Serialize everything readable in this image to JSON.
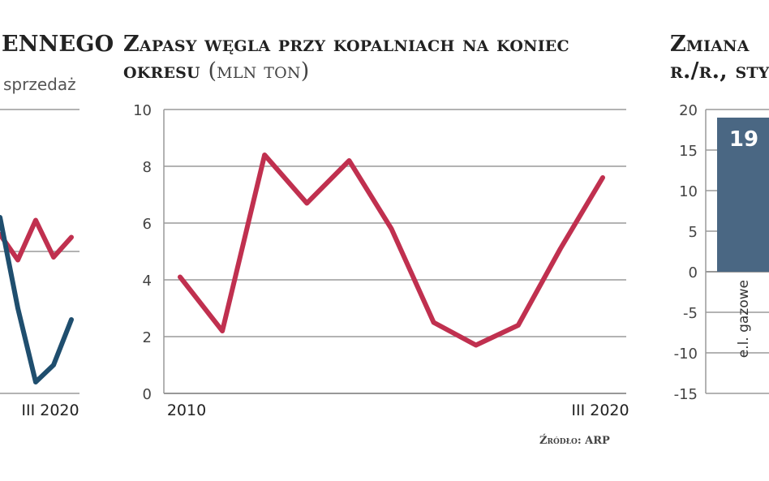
{
  "left_panel": {
    "title_fragment": "ENNEGO",
    "legend_fragment": "sprzedaż",
    "x_end_label": "III 2020",
    "colors": {
      "red": "#c0304f",
      "blue": "#1f4e6e"
    },
    "chart_data": {
      "type": "line",
      "series": [
        {
          "name": "sprzedaż",
          "values": [
            5.6,
            4.7,
            6.1,
            4.8,
            5.5
          ],
          "color": "#c0304f"
        },
        {
          "values": [
            6.2,
            3.0,
            0.4,
            1.0,
            2.6
          ],
          "color": "#1f4e6e"
        }
      ]
    }
  },
  "middle_panel": {
    "title_line1": "Zapasy węgla przy kopalniach na koniec",
    "title_line2": "okresu",
    "unit": "(mln ton)",
    "source": "Źródło: ARP",
    "chart_data": {
      "type": "line",
      "x": [
        "2010",
        "",
        "",
        "",
        "",
        "",
        "",
        "",
        "",
        "",
        "III 2020"
      ],
      "x_labels_shown": [
        "2010",
        "III 2020"
      ],
      "values": [
        4.1,
        2.2,
        8.4,
        6.7,
        8.2,
        5.8,
        2.5,
        1.7,
        2.4,
        5.1,
        7.6
      ],
      "ylim": [
        0,
        10
      ],
      "yticks": [
        0,
        2,
        4,
        6,
        8,
        10
      ],
      "grid": true,
      "line_color": "#c0304f"
    }
  },
  "right_panel": {
    "title_line1": "Zmiana",
    "title_line2": "r./r., sty",
    "bar_category": "e.l. gazowe",
    "bar_value_label": "19",
    "chart_data": {
      "type": "bar",
      "categories": [
        "e.l. gazowe"
      ],
      "values": [
        19
      ],
      "ylim": [
        -15,
        20
      ],
      "yticks": [
        20,
        15,
        10,
        5,
        0,
        -5,
        -10,
        -15
      ],
      "bar_color": "#4a6783",
      "grid": true
    }
  }
}
